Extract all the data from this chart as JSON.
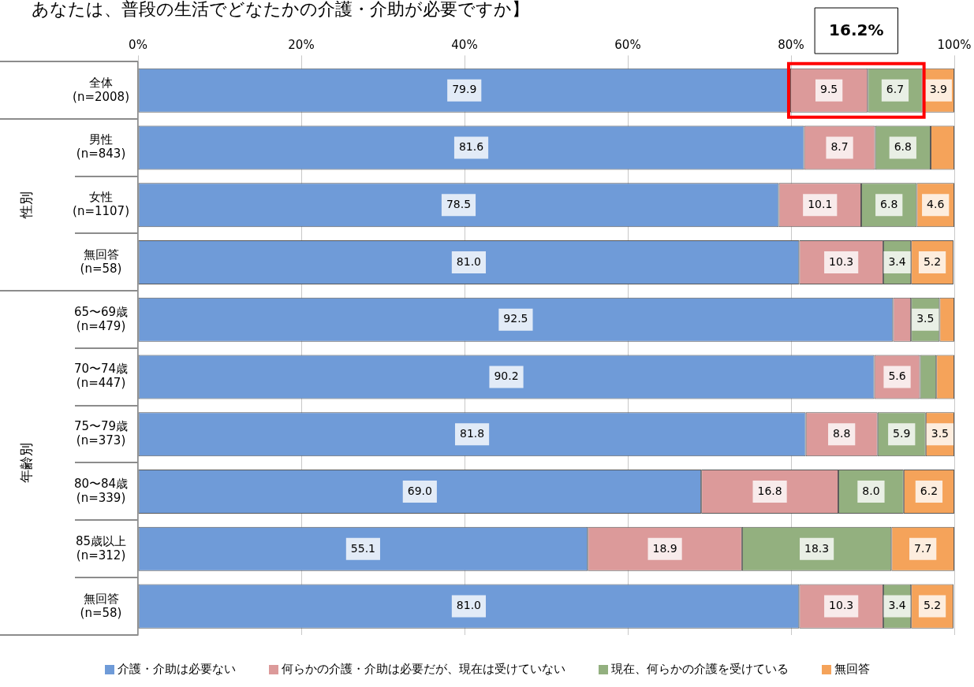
{
  "chart_data": {
    "type": "bar",
    "orientation": "horizontal",
    "stacked": true,
    "title": "あなたは、普段の生活でどなたかの介護・介助が必要ですか】",
    "categories": [
      "全体\n(n=2008)",
      "男性\n(n=843)",
      "女性\n(n=1107)",
      "無回答\n(n=58)",
      "65〜69歳\n(n=479)",
      "70〜74歳\n(n=447)",
      "75〜79歳\n(n=373)",
      "80〜84歳\n(n=339)",
      "85歳以上\n(n=312)",
      "無回答\n(n=58)"
    ],
    "series": [
      {
        "name": "介護・介助は必要ない",
        "color": "#6f9bd8",
        "values": [
          79.9,
          81.6,
          78.5,
          81.0,
          92.5,
          90.2,
          81.8,
          69.0,
          55.1,
          81.0
        ],
        "value_labels": [
          "79.9",
          "81.6",
          "78.5",
          "81.0",
          "92.5",
          "90.2",
          "81.8",
          "69.0",
          "55.1",
          "81.0"
        ]
      },
      {
        "name": "何らかの介護・介助は必要だが、現在は受けていない",
        "color": "#dc9a9a",
        "values": [
          9.5,
          8.7,
          10.1,
          10.3,
          2.2,
          5.6,
          8.8,
          16.8,
          18.9,
          10.3
        ],
        "value_labels": [
          "9.5",
          "8.7",
          "10.1",
          "10.3",
          null,
          "5.6",
          "8.8",
          "16.8",
          "18.9",
          "10.3"
        ]
      },
      {
        "name": "現在、何らかの介護を受けている",
        "color": "#93b07f",
        "values": [
          6.7,
          6.8,
          6.8,
          3.4,
          3.5,
          2.0,
          5.9,
          8.0,
          18.3,
          3.4
        ],
        "value_labels": [
          "6.7",
          "6.8",
          "6.8",
          "3.4",
          "3.5",
          null,
          "5.9",
          "8.0",
          "18.3",
          "3.4"
        ]
      },
      {
        "name": "無回答",
        "color": "#f5a35a",
        "values": [
          3.9,
          2.9,
          4.6,
          5.2,
          1.8,
          2.2,
          3.5,
          6.2,
          7.7,
          5.2
        ],
        "value_labels": [
          "3.9",
          null,
          "4.6",
          "5.2",
          null,
          null,
          "3.5",
          "6.2",
          "7.7",
          "5.2"
        ]
      }
    ],
    "xlim": [
      0,
      100
    ],
    "xticks": [
      {
        "value": 0,
        "label": "0%"
      },
      {
        "value": 20,
        "label": "20%"
      },
      {
        "value": 40,
        "label": "40%"
      },
      {
        "value": 60,
        "label": "60%"
      },
      {
        "value": 80,
        "label": "80%"
      },
      {
        "value": 100,
        "label": "100%"
      }
    ],
    "grid": "x",
    "legend": "bottom",
    "annotations": [
      "16.2%",
      "性別",
      "年齢別"
    ]
  }
}
